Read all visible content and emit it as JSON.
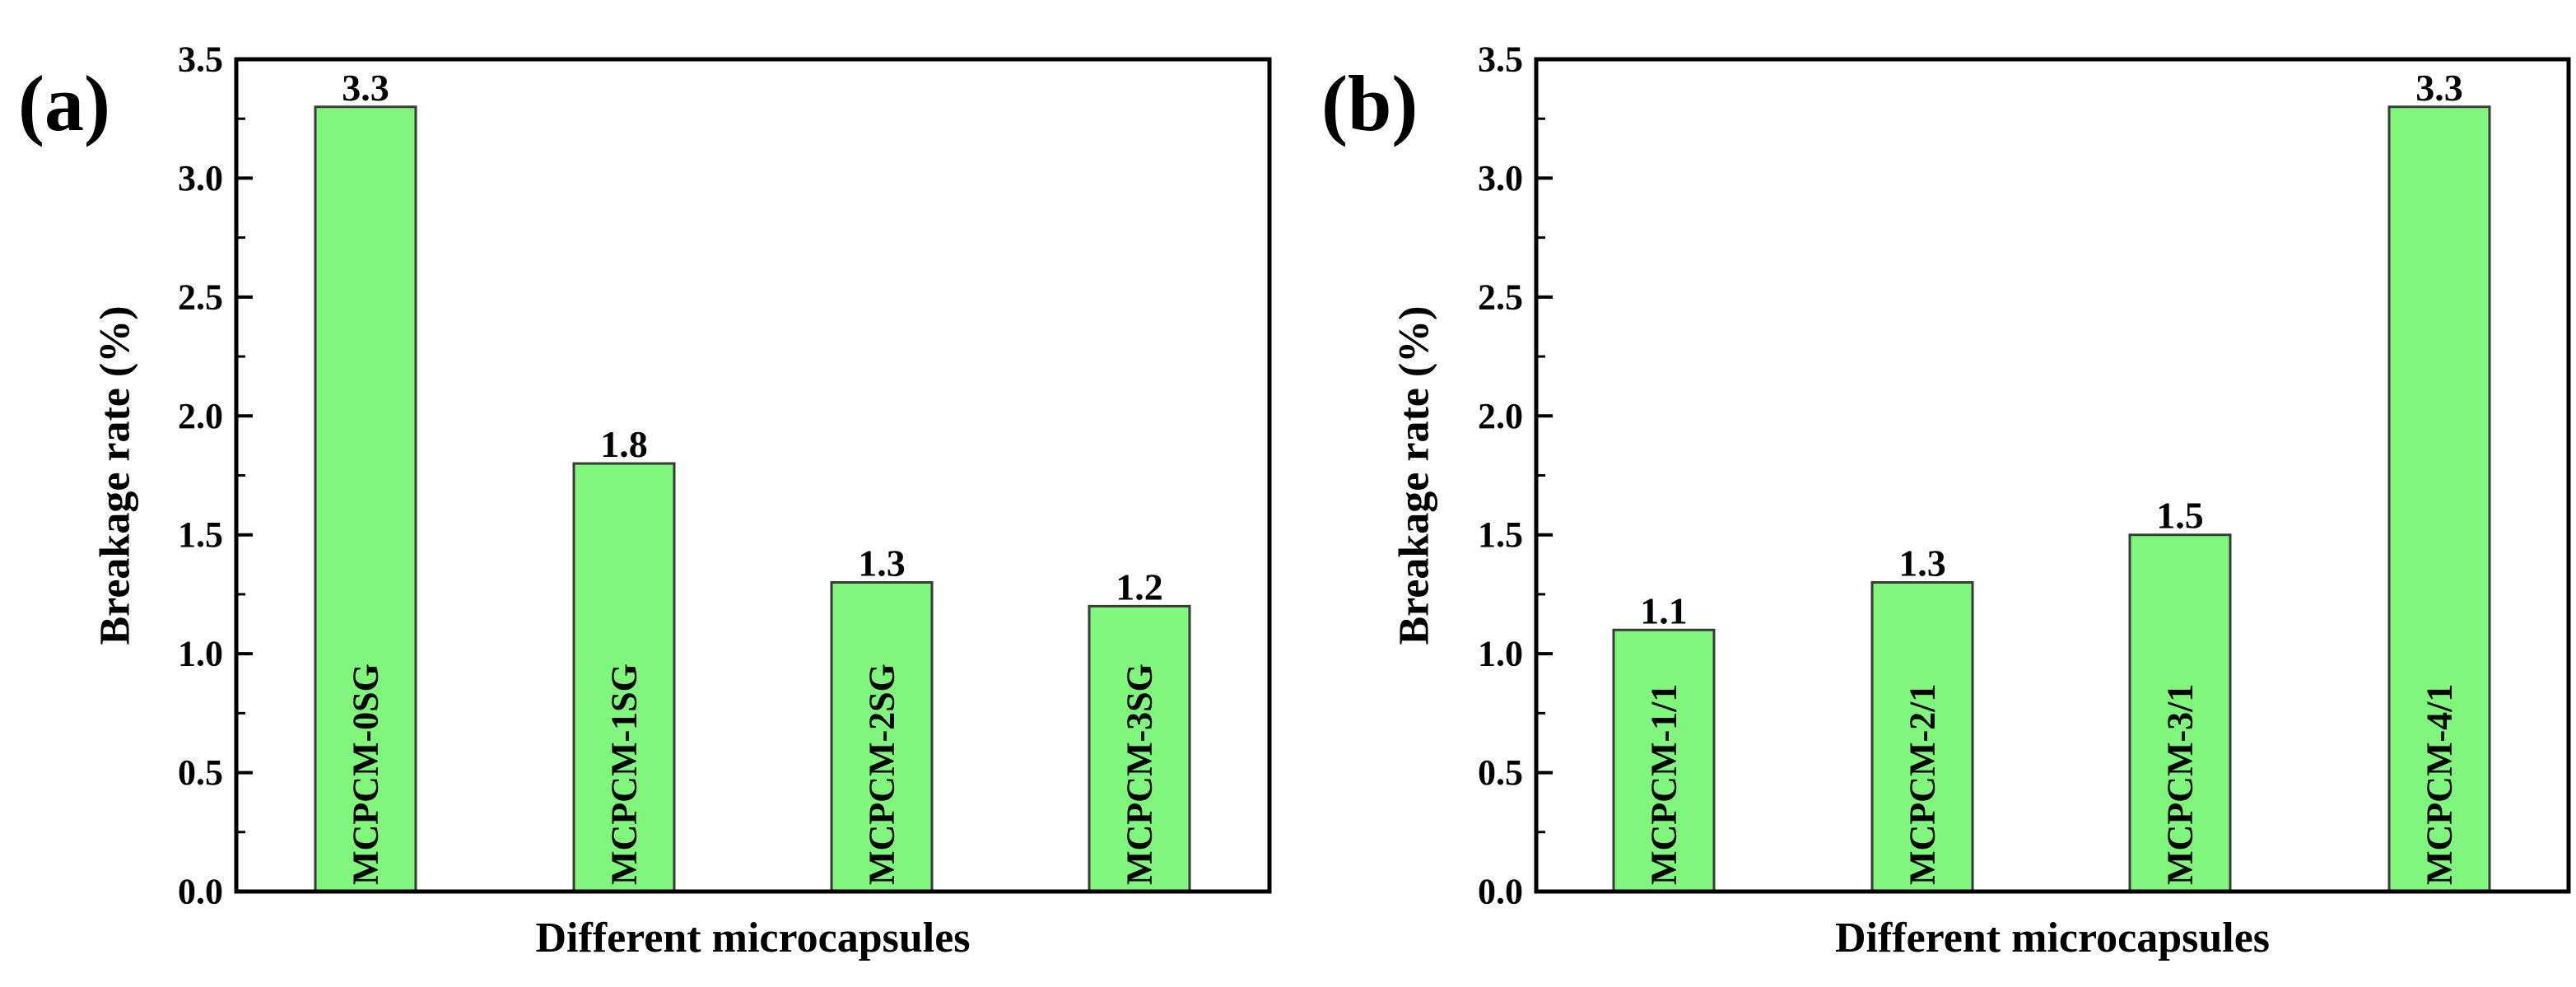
{
  "figure": {
    "description_free": true
  },
  "chart_data": [
    {
      "type": "bar",
      "panel_label": "(a)",
      "categories": [
        "MCPCM-0SG",
        "MCPCM-1SG",
        "MCPCM-2SG",
        "MCPCM-3SG"
      ],
      "values": [
        3.3,
        1.8,
        1.3,
        1.2
      ],
      "data_labels": [
        "3.3",
        "1.8",
        "1.3",
        "1.2"
      ],
      "xlabel": "Different microcapsules",
      "ylabel": "Breakage rate (%)",
      "ylim": [
        0,
        3.5
      ],
      "yticks": [
        "0.0",
        "0.5",
        "1.0",
        "1.5",
        "2.0",
        "2.5",
        "3.0",
        "3.5"
      ],
      "bar_color": "#80f77c",
      "bar_edge_color": "#3a3a3a",
      "grid": false,
      "legend": "none"
    },
    {
      "type": "bar",
      "panel_label": "(b)",
      "categories": [
        "MCPCM-1/1",
        "MCPCM-2/1",
        "MCPCM-3/1",
        "MCPCM-4/1"
      ],
      "values": [
        1.1,
        1.3,
        1.5,
        3.3
      ],
      "data_labels": [
        "1.1",
        "1.3",
        "1.5",
        "3.3"
      ],
      "xlabel": "Different microcapsules",
      "ylabel": "Breakage rate (%)",
      "ylim": [
        0,
        3.5
      ],
      "yticks": [
        "0.0",
        "0.5",
        "1.0",
        "1.5",
        "2.0",
        "2.5",
        "3.0",
        "3.5"
      ],
      "bar_color": "#80f77c",
      "bar_edge_color": "#3a3a3a",
      "grid": false,
      "legend": "none"
    }
  ]
}
